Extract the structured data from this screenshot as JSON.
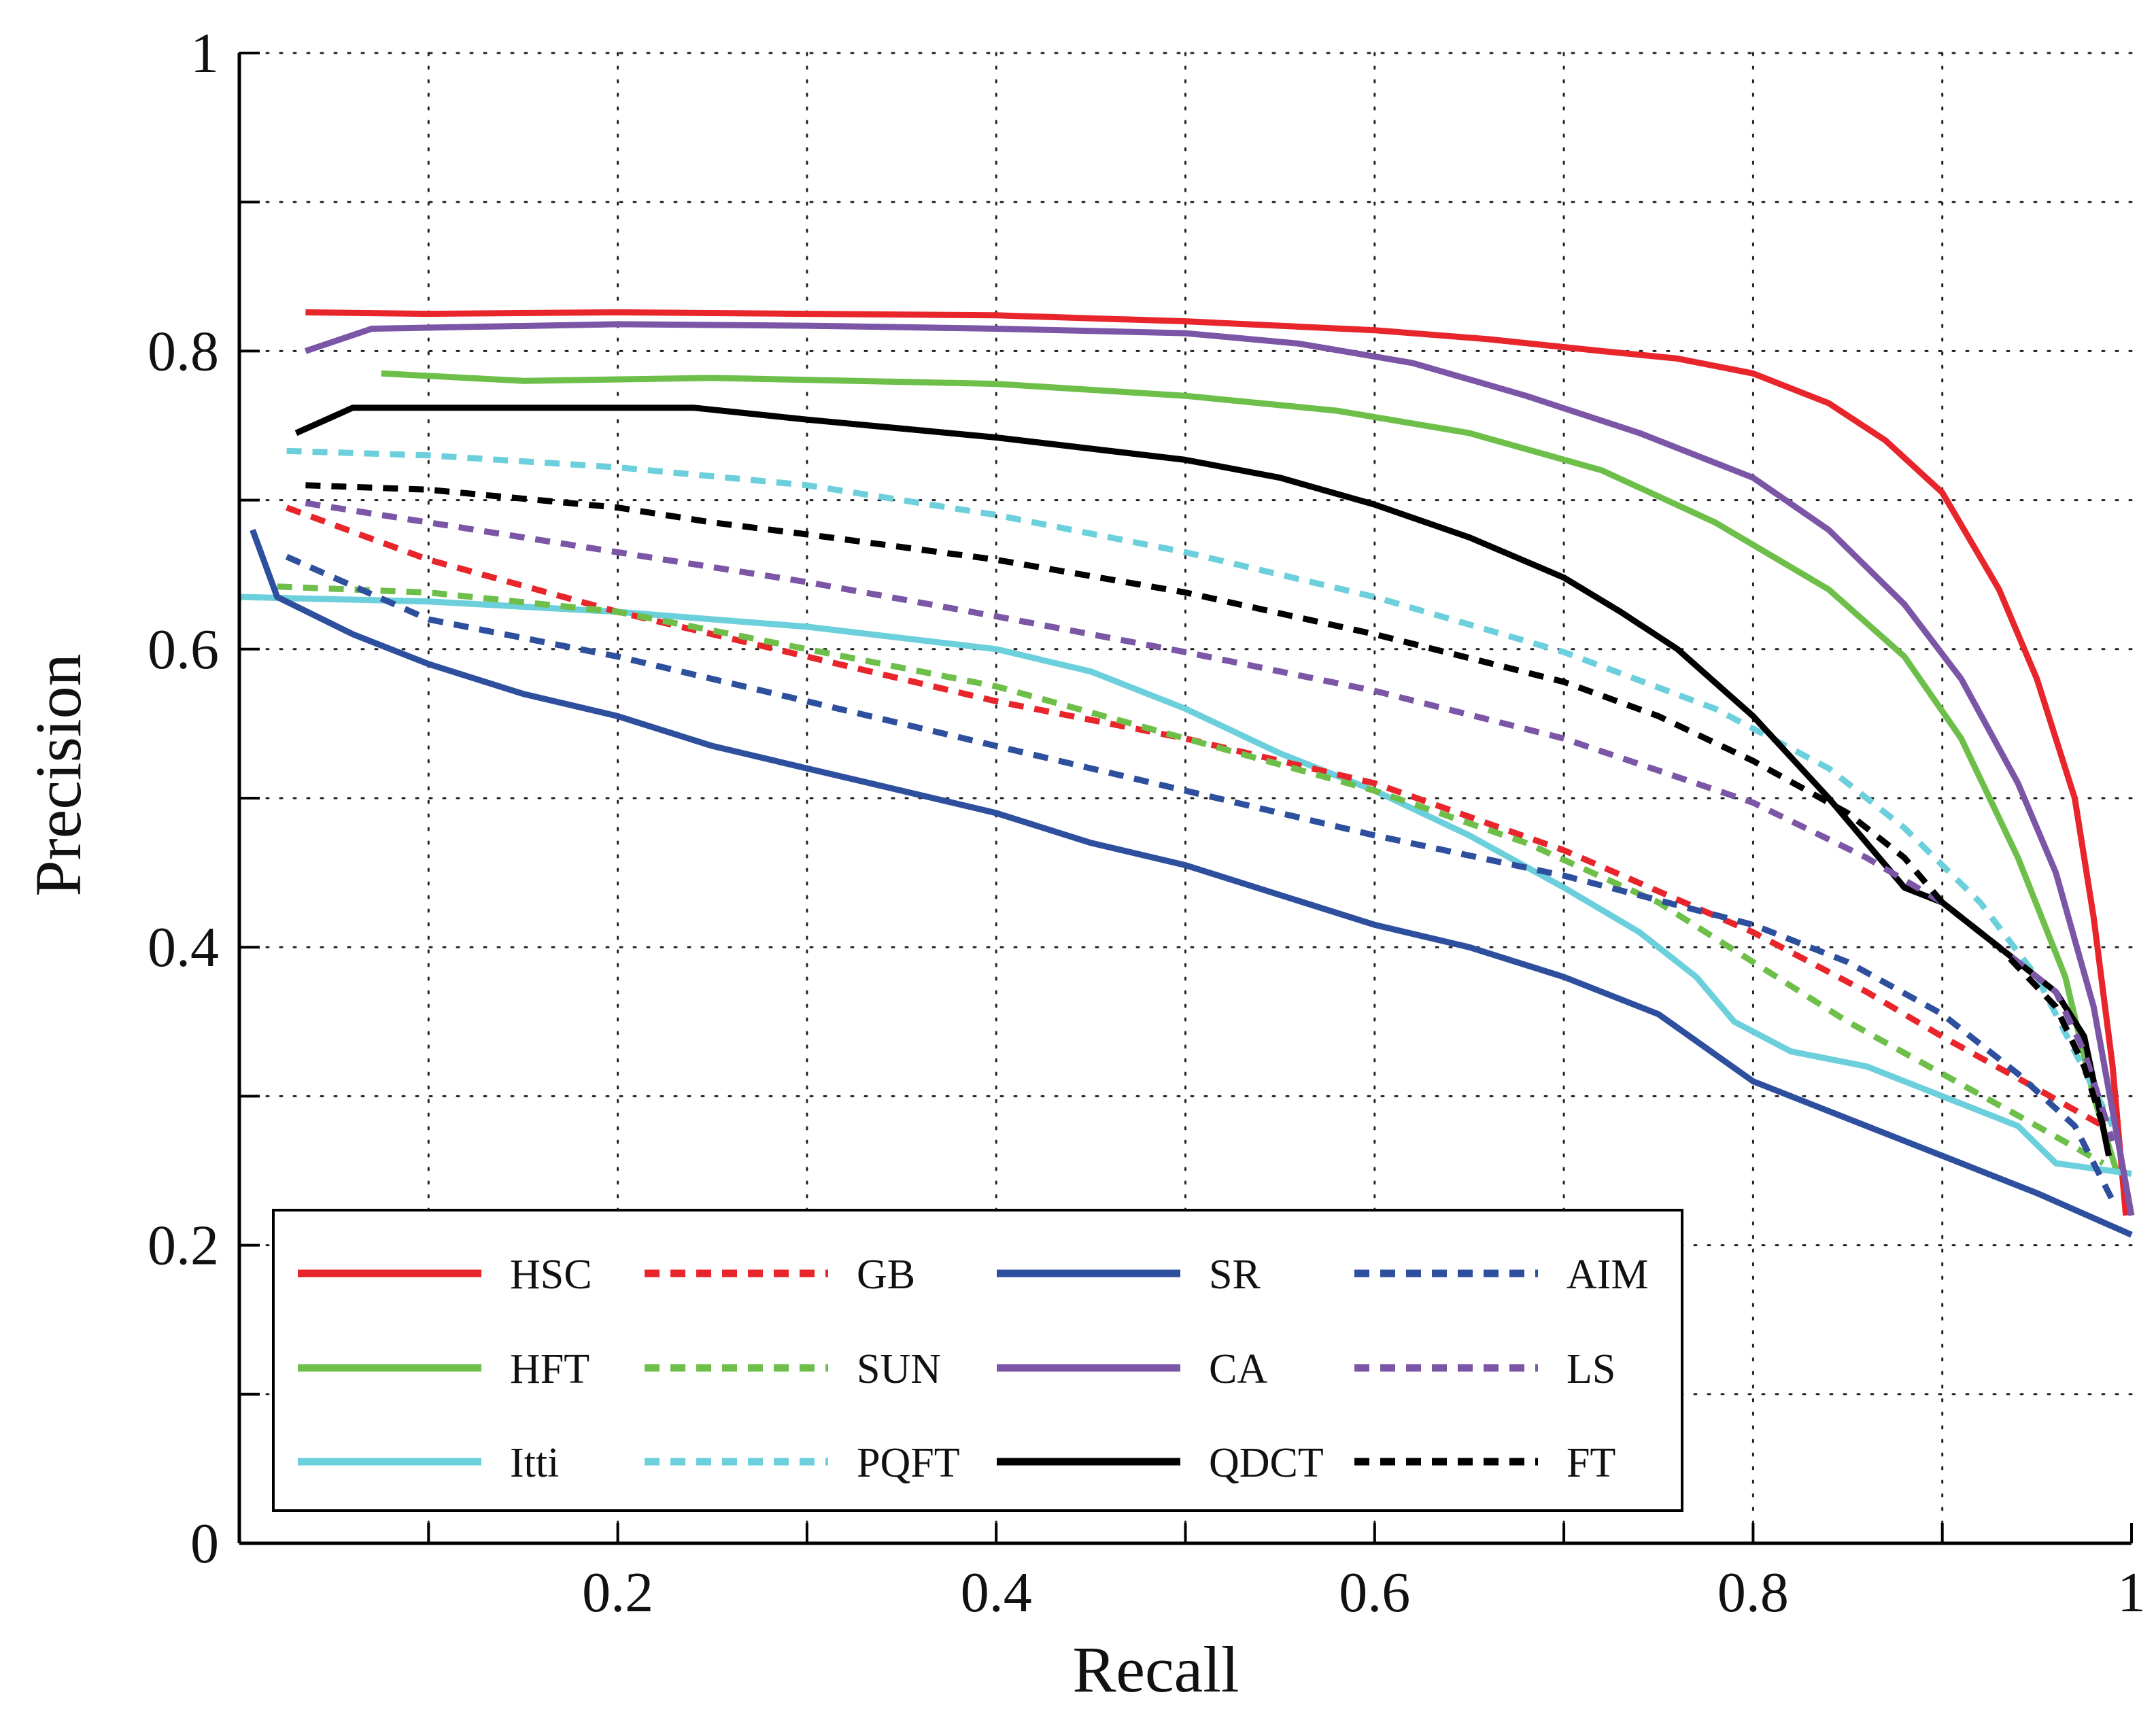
{
  "chart_data": {
    "type": "line",
    "title": "",
    "xlabel": "Recall",
    "ylabel": "Precision",
    "xlim": [
      0,
      1
    ],
    "ylim": [
      0,
      1
    ],
    "grid": true,
    "legend_position": "bottom-left",
    "x_ticks": [
      0.2,
      0.4,
      0.6,
      0.8,
      1
    ],
    "x_tick_labels": [
      "0.2",
      "0.4",
      "0.6",
      "0.8",
      "1"
    ],
    "x_minor_ticks": [
      0.1,
      0.3,
      0.5,
      0.7,
      0.9
    ],
    "y_ticks": [
      0,
      0.2,
      0.4,
      0.6,
      0.8,
      1
    ],
    "y_tick_labels": [
      "0",
      "0.2",
      "0.4",
      "0.6",
      "0.8",
      "1"
    ],
    "y_minor_ticks": [
      0.1,
      0.3,
      0.5,
      0.7,
      0.9
    ],
    "series": [
      {
        "name": "HSC",
        "color": "#e8252b",
        "dash": "solid",
        "points": [
          [
            0.035,
            0.826
          ],
          [
            0.1,
            0.825
          ],
          [
            0.2,
            0.826
          ],
          [
            0.3,
            0.825
          ],
          [
            0.4,
            0.824
          ],
          [
            0.5,
            0.82
          ],
          [
            0.6,
            0.814
          ],
          [
            0.66,
            0.808
          ],
          [
            0.72,
            0.8
          ],
          [
            0.76,
            0.795
          ],
          [
            0.8,
            0.785
          ],
          [
            0.84,
            0.765
          ],
          [
            0.87,
            0.74
          ],
          [
            0.9,
            0.705
          ],
          [
            0.93,
            0.64
          ],
          [
            0.95,
            0.58
          ],
          [
            0.97,
            0.5
          ],
          [
            0.98,
            0.42
          ],
          [
            0.99,
            0.32
          ],
          [
            0.997,
            0.22
          ]
        ]
      },
      {
        "name": "HFT",
        "color": "#6dbf4a",
        "dash": "solid",
        "points": [
          [
            0.075,
            0.785
          ],
          [
            0.15,
            0.78
          ],
          [
            0.25,
            0.782
          ],
          [
            0.4,
            0.778
          ],
          [
            0.5,
            0.77
          ],
          [
            0.58,
            0.76
          ],
          [
            0.65,
            0.745
          ],
          [
            0.72,
            0.72
          ],
          [
            0.78,
            0.685
          ],
          [
            0.84,
            0.64
          ],
          [
            0.88,
            0.595
          ],
          [
            0.91,
            0.54
          ],
          [
            0.94,
            0.46
          ],
          [
            0.965,
            0.38
          ],
          [
            0.98,
            0.3
          ],
          [
            0.992,
            0.25
          ]
        ]
      },
      {
        "name": "Itti",
        "color": "#6ccfdc",
        "dash": "solid",
        "points": [
          [
            0,
            0.635
          ],
          [
            0.1,
            0.632
          ],
          [
            0.2,
            0.625
          ],
          [
            0.3,
            0.615
          ],
          [
            0.4,
            0.6
          ],
          [
            0.45,
            0.585
          ],
          [
            0.5,
            0.56
          ],
          [
            0.55,
            0.53
          ],
          [
            0.6,
            0.505
          ],
          [
            0.65,
            0.475
          ],
          [
            0.7,
            0.44
          ],
          [
            0.74,
            0.41
          ],
          [
            0.77,
            0.38
          ],
          [
            0.79,
            0.35
          ],
          [
            0.82,
            0.33
          ],
          [
            0.86,
            0.32
          ],
          [
            0.9,
            0.3
          ],
          [
            0.94,
            0.28
          ],
          [
            0.96,
            0.255
          ],
          [
            1,
            0.248
          ]
        ]
      },
      {
        "name": "GB",
        "color": "#e8252b",
        "dash": "dashed",
        "points": [
          [
            0.025,
            0.695
          ],
          [
            0.1,
            0.66
          ],
          [
            0.2,
            0.625
          ],
          [
            0.3,
            0.595
          ],
          [
            0.4,
            0.565
          ],
          [
            0.5,
            0.54
          ],
          [
            0.6,
            0.51
          ],
          [
            0.7,
            0.465
          ],
          [
            0.8,
            0.41
          ],
          [
            0.86,
            0.37
          ],
          [
            0.9,
            0.34
          ],
          [
            0.95,
            0.305
          ],
          [
            0.985,
            0.28
          ]
        ]
      },
      {
        "name": "SUN",
        "color": "#6dbf4a",
        "dash": "dashed",
        "points": [
          [
            0.02,
            0.642
          ],
          [
            0.1,
            0.638
          ],
          [
            0.2,
            0.625
          ],
          [
            0.3,
            0.6
          ],
          [
            0.4,
            0.575
          ],
          [
            0.5,
            0.54
          ],
          [
            0.6,
            0.505
          ],
          [
            0.68,
            0.47
          ],
          [
            0.75,
            0.43
          ],
          [
            0.8,
            0.39
          ],
          [
            0.85,
            0.35
          ],
          [
            0.9,
            0.315
          ],
          [
            0.95,
            0.28
          ],
          [
            0.985,
            0.255
          ]
        ]
      },
      {
        "name": "PQFT",
        "color": "#6ccfdc",
        "dash": "dashed",
        "points": [
          [
            0.025,
            0.733
          ],
          [
            0.1,
            0.73
          ],
          [
            0.2,
            0.722
          ],
          [
            0.3,
            0.71
          ],
          [
            0.4,
            0.69
          ],
          [
            0.5,
            0.665
          ],
          [
            0.6,
            0.635
          ],
          [
            0.7,
            0.598
          ],
          [
            0.78,
            0.56
          ],
          [
            0.84,
            0.52
          ],
          [
            0.88,
            0.48
          ],
          [
            0.92,
            0.43
          ],
          [
            0.95,
            0.38
          ],
          [
            0.97,
            0.33
          ],
          [
            0.99,
            0.28
          ]
        ]
      },
      {
        "name": "SR",
        "color": "#2d4f9e",
        "dash": "solid",
        "points": [
          [
            0.007,
            0.68
          ],
          [
            0.02,
            0.635
          ],
          [
            0.06,
            0.61
          ],
          [
            0.1,
            0.59
          ],
          [
            0.15,
            0.57
          ],
          [
            0.2,
            0.555
          ],
          [
            0.25,
            0.535
          ],
          [
            0.3,
            0.52
          ],
          [
            0.35,
            0.505
          ],
          [
            0.4,
            0.49
          ],
          [
            0.45,
            0.47
          ],
          [
            0.5,
            0.455
          ],
          [
            0.55,
            0.435
          ],
          [
            0.6,
            0.415
          ],
          [
            0.65,
            0.4
          ],
          [
            0.7,
            0.38
          ],
          [
            0.75,
            0.355
          ],
          [
            0.8,
            0.31
          ],
          [
            0.85,
            0.285
          ],
          [
            0.9,
            0.26
          ],
          [
            0.95,
            0.235
          ],
          [
            1,
            0.207
          ]
        ]
      },
      {
        "name": "CA",
        "color": "#7b56a6",
        "dash": "solid",
        "points": [
          [
            0.035,
            0.8
          ],
          [
            0.07,
            0.815
          ],
          [
            0.2,
            0.818
          ],
          [
            0.3,
            0.817
          ],
          [
            0.4,
            0.815
          ],
          [
            0.5,
            0.812
          ],
          [
            0.56,
            0.805
          ],
          [
            0.62,
            0.792
          ],
          [
            0.68,
            0.77
          ],
          [
            0.74,
            0.745
          ],
          [
            0.8,
            0.715
          ],
          [
            0.84,
            0.68
          ],
          [
            0.88,
            0.63
          ],
          [
            0.91,
            0.58
          ],
          [
            0.94,
            0.51
          ],
          [
            0.96,
            0.45
          ],
          [
            0.98,
            0.36
          ],
          [
            0.99,
            0.29
          ],
          [
            1,
            0.22
          ]
        ]
      },
      {
        "name": "QDCT",
        "color": "#000000",
        "dash": "solid",
        "points": [
          [
            0.03,
            0.745
          ],
          [
            0.06,
            0.762
          ],
          [
            0.15,
            0.762
          ],
          [
            0.24,
            0.762
          ],
          [
            0.3,
            0.754
          ],
          [
            0.4,
            0.742
          ],
          [
            0.5,
            0.727
          ],
          [
            0.55,
            0.715
          ],
          [
            0.6,
            0.697
          ],
          [
            0.65,
            0.675
          ],
          [
            0.7,
            0.648
          ],
          [
            0.73,
            0.625
          ],
          [
            0.76,
            0.6
          ],
          [
            0.8,
            0.555
          ],
          [
            0.84,
            0.5
          ],
          [
            0.88,
            0.44
          ],
          [
            0.9,
            0.43
          ],
          [
            0.93,
            0.4
          ],
          [
            0.96,
            0.37
          ],
          [
            0.975,
            0.34
          ],
          [
            0.98,
            0.31
          ],
          [
            0.988,
            0.26
          ]
        ]
      },
      {
        "name": "AIM",
        "color": "#2d4f9e",
        "dash": "dashed",
        "points": [
          [
            0.025,
            0.662
          ],
          [
            0.1,
            0.62
          ],
          [
            0.2,
            0.595
          ],
          [
            0.3,
            0.565
          ],
          [
            0.4,
            0.535
          ],
          [
            0.5,
            0.505
          ],
          [
            0.6,
            0.475
          ],
          [
            0.7,
            0.448
          ],
          [
            0.8,
            0.415
          ],
          [
            0.85,
            0.39
          ],
          [
            0.9,
            0.355
          ],
          [
            0.94,
            0.315
          ],
          [
            0.97,
            0.28
          ],
          [
            0.99,
            0.23
          ]
        ]
      },
      {
        "name": "LS",
        "color": "#7b56a6",
        "dash": "dashed",
        "points": [
          [
            0.035,
            0.698
          ],
          [
            0.1,
            0.685
          ],
          [
            0.2,
            0.665
          ],
          [
            0.3,
            0.645
          ],
          [
            0.4,
            0.622
          ],
          [
            0.5,
            0.598
          ],
          [
            0.6,
            0.572
          ],
          [
            0.7,
            0.54
          ],
          [
            0.8,
            0.497
          ],
          [
            0.86,
            0.46
          ],
          [
            0.9,
            0.43
          ],
          [
            0.93,
            0.4
          ],
          [
            0.96,
            0.37
          ],
          [
            0.975,
            0.33
          ],
          [
            0.99,
            0.27
          ]
        ]
      },
      {
        "name": "FT",
        "color": "#000000",
        "dash": "dashed",
        "points": [
          [
            0.035,
            0.71
          ],
          [
            0.1,
            0.707
          ],
          [
            0.2,
            0.695
          ],
          [
            0.25,
            0.685
          ],
          [
            0.3,
            0.677
          ],
          [
            0.4,
            0.66
          ],
          [
            0.5,
            0.638
          ],
          [
            0.6,
            0.61
          ],
          [
            0.7,
            0.578
          ],
          [
            0.75,
            0.555
          ],
          [
            0.8,
            0.525
          ],
          [
            0.85,
            0.49
          ],
          [
            0.88,
            0.46
          ],
          [
            0.9,
            0.43
          ],
          [
            0.93,
            0.4
          ],
          [
            0.96,
            0.36
          ],
          [
            0.975,
            0.32
          ],
          [
            0.985,
            0.28
          ]
        ]
      }
    ],
    "legend_rows": [
      [
        "HSC",
        "GB",
        "SR",
        "AIM"
      ],
      [
        "HFT",
        "SUN",
        "CA",
        "LS"
      ],
      [
        "Itti",
        "PQFT",
        "QDCT",
        "FT"
      ]
    ]
  }
}
